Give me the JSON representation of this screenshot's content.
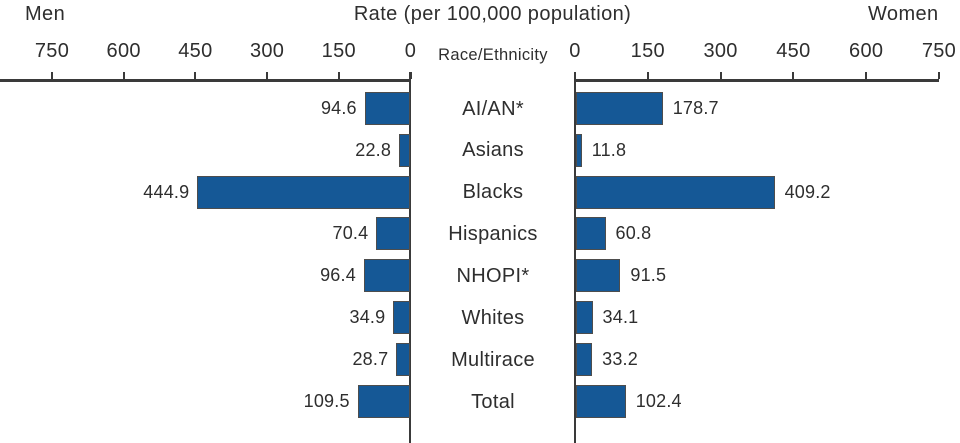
{
  "header": {
    "left_title": "Men",
    "center_title": "Rate (per 100,000 population)",
    "right_title": "Women"
  },
  "chart_data": {
    "type": "bar",
    "subtype": "bilateral-butterfly",
    "title": "Rate (per 100,000 population)",
    "orientation": "horizontal",
    "categories": [
      "AI/AN*",
      "Asians",
      "Blacks",
      "Hispanics",
      "NHOPI*",
      "Whites",
      "Multirace",
      "Total"
    ],
    "series": [
      {
        "name": "Men",
        "side": "left",
        "values": [
          94.6,
          22.8,
          444.9,
          70.4,
          96.4,
          34.9,
          28.7,
          109.5
        ]
      },
      {
        "name": "Women",
        "side": "right",
        "values": [
          178.7,
          11.8,
          409.2,
          60.8,
          91.5,
          34.1,
          33.2,
          102.4
        ]
      }
    ],
    "axis": {
      "center_label": "Race/Ethnicity",
      "ticks_left": [
        750,
        600,
        450,
        300,
        150,
        0
      ],
      "ticks_right": [
        0,
        150,
        300,
        450,
        600,
        750
      ],
      "max": 750,
      "tick_interval": 150,
      "grid": false
    },
    "colors": {
      "bar_fill": "#155896",
      "bar_border": "#4d4d4d",
      "axis_line": "#3a3a3a",
      "text": "#2e2e2e"
    }
  }
}
